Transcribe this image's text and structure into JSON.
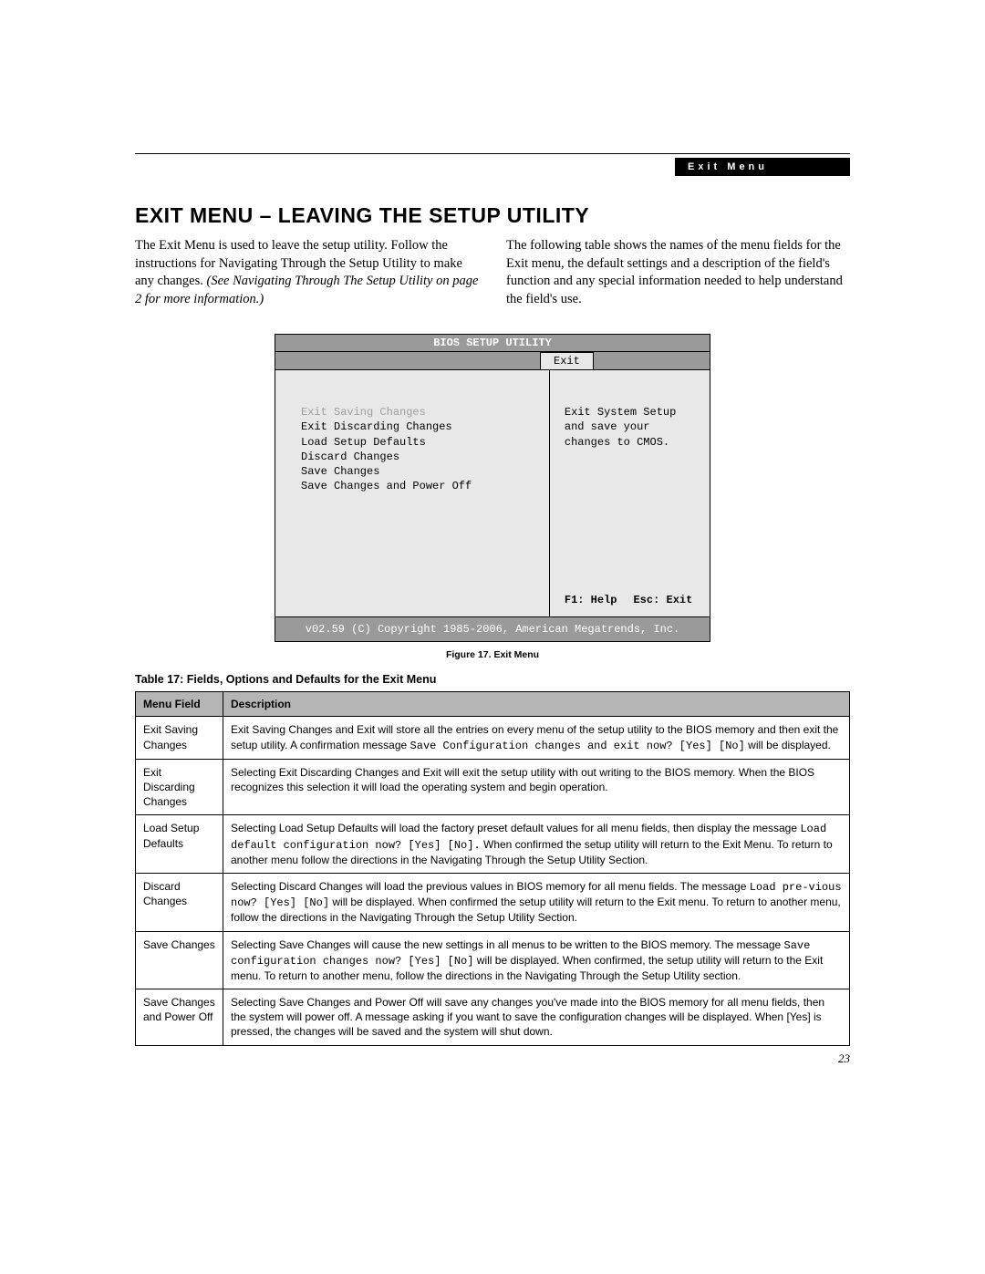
{
  "header": {
    "section_label": "Exit Menu"
  },
  "title": "EXIT MENU – LEAVING THE SETUP UTILITY",
  "intro": {
    "left_plain": "The Exit Menu is used to leave the setup utility. Follow the instructions for Navigating Through the Setup Utility to make any changes. ",
    "left_italic": "(See Navigating Through The Setup Utility on page 2 for more information.)",
    "right": "The following table shows the names of the menu fields for the Exit menu, the default settings and a description of the field's function and any special information needed to help understand the field's use."
  },
  "bios": {
    "title": "BIOS SETUP UTILITY",
    "tab": "Exit",
    "menu_items": [
      "Exit Saving Changes",
      "Exit Discarding Changes",
      "Load Setup Defaults",
      "Discard Changes",
      "Save Changes",
      "Save Changes and Power Off"
    ],
    "help_text": "Exit System Setup and save your changes to CMOS.",
    "f1": "F1: Help",
    "esc": "Esc: Exit",
    "footer": "v02.59 (C) Copyright 1985-2006, American Megatrends, Inc."
  },
  "figure_caption": "Figure 17.  Exit Menu",
  "table_title": "Table 17: Fields, Options and Defaults for the Exit Menu",
  "table": {
    "columns": [
      "Menu Field",
      "Description"
    ],
    "rows": [
      {
        "field": "Exit Saving Changes",
        "desc_pre": "Exit Saving Changes and Exit will store all the entries on every menu of the setup utility to the BIOS memory and then exit the setup utility. A confirmation message ",
        "desc_mono": "Save Configuration changes and exit now? [Yes] [No]",
        "desc_post": " will be displayed."
      },
      {
        "field": "Exit Discarding Changes",
        "desc_pre": "Selecting Exit Discarding Changes and Exit will exit the setup utility with out writing to the BIOS memory. When the BIOS recognizes this selection it will load the operating system and begin operation.",
        "desc_mono": "",
        "desc_post": ""
      },
      {
        "field": "Load Setup Defaults",
        "desc_pre": "Selecting Load Setup Defaults will load the factory preset default values for all menu fields, then display the message ",
        "desc_mono": "Load default configuration now? [Yes] [No].",
        "desc_post": " When confirmed the setup utility will return to the Exit Menu. To return to another menu follow the directions in the Navigating Through the Setup Utility Section."
      },
      {
        "field": "Discard Changes",
        "desc_pre": "Selecting Discard Changes will load the previous values in BIOS memory for all menu fields. The message ",
        "desc_mono": "Load pre-vious now? [Yes] [No]",
        "desc_post": " will be displayed. When confirmed the setup utility will return to the Exit menu. To return to another menu, follow the directions in the Navigating Through the Setup Utility Section."
      },
      {
        "field": "Save Changes",
        "desc_pre": "Selecting Save Changes will cause the new settings in all menus to be written to the BIOS memory. The message ",
        "desc_mono": "Save configuration changes now? [Yes] [No]",
        "desc_post": " will be displayed. When confirmed, the setup utility will return to the Exit menu. To return to another menu, follow the directions in the Navigating Through the Setup Utility section."
      },
      {
        "field": "Save Changes and Power Off",
        "desc_pre": "Selecting Save Changes and Power Off will save any changes you've made into the BIOS memory for all menu fields, then the system will power off. A message asking if you want to save the configuration changes will be displayed. When [Yes] is pressed, the changes will be saved and the system will shut down.",
        "desc_mono": "",
        "desc_post": ""
      }
    ]
  },
  "page_number": "23"
}
